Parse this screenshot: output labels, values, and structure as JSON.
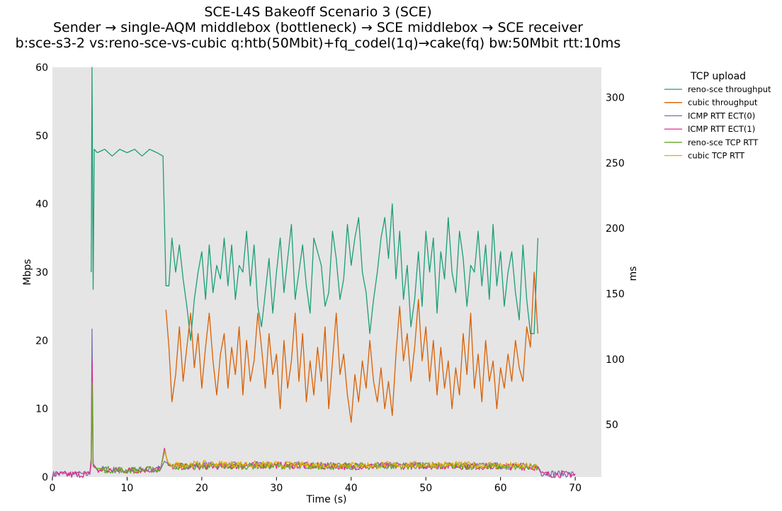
{
  "chart_data": {
    "type": "line",
    "title": [
      "SCE-L4S Bakeoff Scenario 3 (SCE)",
      "Sender → single-AQM middlebox (bottleneck) → SCE middlebox → SCE receiver",
      "b:sce-s3-2 vs:reno-sce-vs-cubic q:htb(50Mbit)+fq_codel(1q)→cake(fq) bw:50Mbit rtt:10ms"
    ],
    "xlabel": "Time (s)",
    "ylabel_left": "Mbps",
    "ylabel_right": "ms",
    "xlim": [
      0,
      73.5
    ],
    "ylim_left": [
      0,
      60
    ],
    "ylim_right": [
      10,
      323
    ],
    "xticks": [
      0,
      10,
      20,
      30,
      40,
      50,
      60,
      70
    ],
    "yticks_left": [
      0,
      10,
      20,
      30,
      40,
      50,
      60
    ],
    "yticks_right": [
      50,
      100,
      150,
      200,
      250,
      300
    ],
    "legend_title": "TCP upload",
    "series": [
      {
        "name": "reno-sce throughput",
        "axis": "left",
        "color": "#1b9e77",
        "points": [
          [
            5.2,
            30
          ],
          [
            5.3,
            60
          ],
          [
            5.45,
            27.5
          ],
          [
            5.6,
            48
          ],
          [
            6,
            47.5
          ],
          [
            7,
            48
          ],
          [
            8,
            47
          ],
          [
            9,
            48
          ],
          [
            10,
            47.5
          ],
          [
            11,
            48
          ],
          [
            12,
            47
          ],
          [
            13,
            48
          ],
          [
            14,
            47.5
          ],
          [
            14.8,
            47
          ],
          [
            15.2,
            28
          ],
          [
            15.6,
            28
          ],
          [
            16,
            35
          ],
          [
            16.5,
            30
          ],
          [
            17,
            34
          ],
          [
            17.5,
            29
          ],
          [
            18,
            25
          ],
          [
            18.5,
            20
          ],
          [
            19,
            26
          ],
          [
            19.5,
            30
          ],
          [
            20,
            33
          ],
          [
            20.5,
            26
          ],
          [
            21,
            34
          ],
          [
            21.5,
            27
          ],
          [
            22,
            31
          ],
          [
            22.5,
            29
          ],
          [
            23,
            35
          ],
          [
            23.5,
            28
          ],
          [
            24,
            34
          ],
          [
            24.5,
            26
          ],
          [
            25,
            31
          ],
          [
            25.5,
            30
          ],
          [
            26,
            36
          ],
          [
            26.5,
            28
          ],
          [
            27,
            34
          ],
          [
            27.5,
            25
          ],
          [
            28,
            22
          ],
          [
            28.5,
            27
          ],
          [
            29,
            32
          ],
          [
            29.5,
            24
          ],
          [
            30,
            30
          ],
          [
            30.5,
            35
          ],
          [
            31,
            27
          ],
          [
            31.5,
            32
          ],
          [
            32,
            37
          ],
          [
            32.5,
            26
          ],
          [
            33,
            30
          ],
          [
            33.5,
            34
          ],
          [
            34,
            28
          ],
          [
            34.5,
            24
          ],
          [
            35,
            35
          ],
          [
            35.5,
            33
          ],
          [
            36,
            31
          ],
          [
            36.5,
            25
          ],
          [
            37,
            27
          ],
          [
            37.5,
            36
          ],
          [
            38,
            32
          ],
          [
            38.5,
            26
          ],
          [
            39,
            29
          ],
          [
            39.5,
            37
          ],
          [
            40,
            31
          ],
          [
            40.5,
            35
          ],
          [
            41,
            38
          ],
          [
            41.5,
            30
          ],
          [
            42,
            27
          ],
          [
            42.5,
            21
          ],
          [
            43,
            26
          ],
          [
            43.5,
            30
          ],
          [
            44,
            35
          ],
          [
            44.5,
            38
          ],
          [
            45,
            32
          ],
          [
            45.5,
            40
          ],
          [
            46,
            29
          ],
          [
            46.5,
            36
          ],
          [
            47,
            26
          ],
          [
            47.5,
            31
          ],
          [
            48,
            22
          ],
          [
            48.5,
            26
          ],
          [
            49,
            33
          ],
          [
            49.5,
            25
          ],
          [
            50,
            36
          ],
          [
            50.5,
            30
          ],
          [
            51,
            35
          ],
          [
            51.5,
            24
          ],
          [
            52,
            33
          ],
          [
            52.5,
            29
          ],
          [
            53,
            38
          ],
          [
            53.5,
            30
          ],
          [
            54,
            27
          ],
          [
            54.5,
            36
          ],
          [
            55,
            32
          ],
          [
            55.5,
            25
          ],
          [
            56,
            31
          ],
          [
            56.5,
            30
          ],
          [
            57,
            36
          ],
          [
            57.5,
            28
          ],
          [
            58,
            34
          ],
          [
            58.5,
            26
          ],
          [
            59,
            37
          ],
          [
            59.5,
            28
          ],
          [
            60,
            33
          ],
          [
            60.5,
            25
          ],
          [
            61,
            30
          ],
          [
            61.5,
            33
          ],
          [
            62,
            27
          ],
          [
            62.5,
            23
          ],
          [
            63,
            34
          ],
          [
            63.5,
            26
          ],
          [
            64,
            21
          ],
          [
            64.5,
            21
          ],
          [
            65,
            35
          ]
        ]
      },
      {
        "name": "cubic throughput",
        "axis": "left",
        "color": "#d95f02",
        "points": [
          [
            15.2,
            24.5
          ],
          [
            15.6,
            19
          ],
          [
            16,
            11
          ],
          [
            16.5,
            15
          ],
          [
            17,
            22
          ],
          [
            17.5,
            14
          ],
          [
            18,
            19
          ],
          [
            18.5,
            24
          ],
          [
            19,
            16
          ],
          [
            19.5,
            21
          ],
          [
            20,
            13
          ],
          [
            20.5,
            19
          ],
          [
            21,
            24
          ],
          [
            21.5,
            17
          ],
          [
            22,
            12
          ],
          [
            22.5,
            18
          ],
          [
            23,
            21
          ],
          [
            23.5,
            13
          ],
          [
            24,
            19
          ],
          [
            24.5,
            15
          ],
          [
            25,
            22
          ],
          [
            25.5,
            12
          ],
          [
            26,
            20
          ],
          [
            26.5,
            14
          ],
          [
            27,
            17
          ],
          [
            27.5,
            24
          ],
          [
            28,
            19
          ],
          [
            28.5,
            13
          ],
          [
            29,
            21
          ],
          [
            29.5,
            15
          ],
          [
            30,
            18
          ],
          [
            30.5,
            10
          ],
          [
            31,
            20
          ],
          [
            31.5,
            13
          ],
          [
            32,
            17
          ],
          [
            32.5,
            24
          ],
          [
            33,
            14
          ],
          [
            33.5,
            21
          ],
          [
            34,
            11
          ],
          [
            34.5,
            17
          ],
          [
            35,
            12
          ],
          [
            35.5,
            19
          ],
          [
            36,
            14
          ],
          [
            36.5,
            22
          ],
          [
            37,
            10
          ],
          [
            37.5,
            17
          ],
          [
            38,
            24
          ],
          [
            38.5,
            15
          ],
          [
            39,
            18
          ],
          [
            39.5,
            12
          ],
          [
            40,
            8
          ],
          [
            40.5,
            15
          ],
          [
            41,
            11
          ],
          [
            41.5,
            17
          ],
          [
            42,
            13
          ],
          [
            42.5,
            20
          ],
          [
            43,
            14
          ],
          [
            43.5,
            11
          ],
          [
            44,
            16
          ],
          [
            44.5,
            10
          ],
          [
            45,
            14
          ],
          [
            45.5,
            9
          ],
          [
            46,
            18
          ],
          [
            46.5,
            25
          ],
          [
            47,
            17
          ],
          [
            47.5,
            21
          ],
          [
            48,
            14
          ],
          [
            48.5,
            19
          ],
          [
            49,
            26
          ],
          [
            49.5,
            17
          ],
          [
            50,
            22
          ],
          [
            50.5,
            14
          ],
          [
            51,
            20
          ],
          [
            51.5,
            12
          ],
          [
            52,
            19
          ],
          [
            52.5,
            13
          ],
          [
            53,
            17
          ],
          [
            53.5,
            10
          ],
          [
            54,
            16
          ],
          [
            54.5,
            12
          ],
          [
            55,
            21
          ],
          [
            55.5,
            15
          ],
          [
            56,
            24
          ],
          [
            56.5,
            13
          ],
          [
            57,
            18
          ],
          [
            57.5,
            11
          ],
          [
            58,
            20
          ],
          [
            58.5,
            14
          ],
          [
            59,
            17
          ],
          [
            59.5,
            10
          ],
          [
            60,
            16
          ],
          [
            60.5,
            13
          ],
          [
            61,
            18
          ],
          [
            61.5,
            14
          ],
          [
            62,
            20
          ],
          [
            62.5,
            16
          ],
          [
            63,
            14
          ],
          [
            63.5,
            22
          ],
          [
            64,
            19
          ],
          [
            64.5,
            30
          ],
          [
            65,
            21
          ]
        ]
      },
      {
        "name": "ICMP RTT ECT(0)",
        "axis": "right",
        "color": "#7570b3",
        "points": [
          [
            0,
            12
          ],
          [
            5,
            12
          ],
          [
            5.2,
            20
          ],
          [
            5.3,
            123
          ],
          [
            5.45,
            20
          ],
          [
            6,
            16
          ],
          [
            10,
            15
          ],
          [
            14.5,
            16
          ],
          [
            15,
            22
          ],
          [
            15.5,
            20
          ],
          [
            16,
            18
          ],
          [
            20,
            19
          ],
          [
            30,
            19
          ],
          [
            40,
            18.5
          ],
          [
            50,
            19
          ],
          [
            60,
            18.5
          ],
          [
            65,
            18
          ],
          [
            65.5,
            13
          ],
          [
            70,
            12
          ]
        ]
      },
      {
        "name": "ICMP RTT ECT(1)",
        "axis": "right",
        "color": "#e7298a",
        "points": [
          [
            0,
            12
          ],
          [
            5,
            12
          ],
          [
            5.2,
            25
          ],
          [
            5.3,
            99
          ],
          [
            5.45,
            20
          ],
          [
            6,
            15
          ],
          [
            10,
            15
          ],
          [
            14.5,
            16
          ],
          [
            15,
            32
          ],
          [
            15.5,
            19
          ],
          [
            16,
            18
          ],
          [
            20,
            18
          ],
          [
            30,
            19
          ],
          [
            40,
            18
          ],
          [
            50,
            18.5
          ],
          [
            60,
            18
          ],
          [
            65,
            17.5
          ],
          [
            65.5,
            12
          ],
          [
            70,
            12
          ]
        ]
      },
      {
        "name": "reno-sce TCP RTT",
        "axis": "right",
        "color": "#66a61e",
        "points": [
          [
            5.2,
            20
          ],
          [
            5.3,
            82
          ],
          [
            5.45,
            18
          ],
          [
            6,
            16
          ],
          [
            10,
            15
          ],
          [
            14.5,
            16
          ],
          [
            15,
            30
          ],
          [
            15.5,
            20
          ],
          [
            16,
            18
          ],
          [
            20,
            18
          ],
          [
            30,
            18.5
          ],
          [
            40,
            18
          ],
          [
            50,
            18.5
          ],
          [
            60,
            18
          ],
          [
            65,
            17
          ]
        ]
      },
      {
        "name": "cubic TCP RTT",
        "axis": "right",
        "color": "#e6ab02",
        "points": [
          [
            15,
            30
          ],
          [
            15.5,
            21
          ],
          [
            16,
            19
          ],
          [
            20,
            20
          ],
          [
            30,
            19.5
          ],
          [
            40,
            19
          ],
          [
            50,
            19.5
          ],
          [
            60,
            19
          ],
          [
            65,
            18
          ]
        ]
      }
    ]
  }
}
